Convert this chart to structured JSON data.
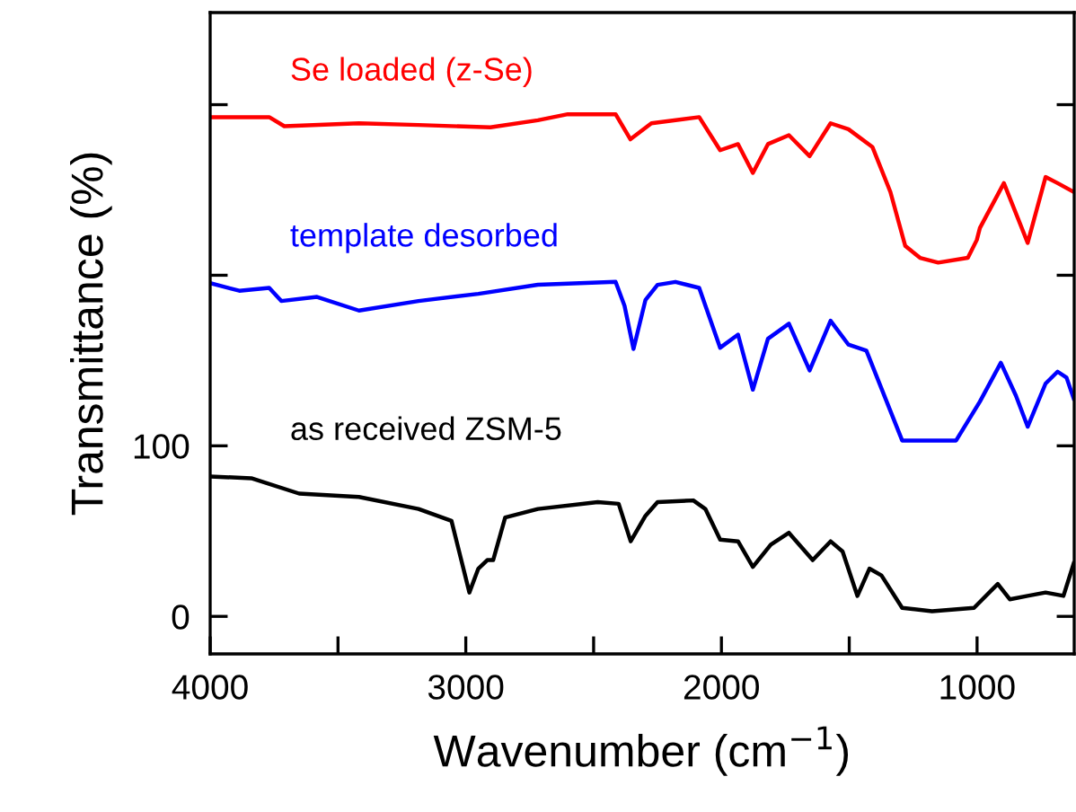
{
  "chart_data": {
    "type": "line",
    "xlabel": "Wavenumber (cm$^{−1}$)",
    "ylabel": "Transmittance (%)",
    "xlim": [
      4000,
      620
    ],
    "ylim": [
      -22,
      354
    ],
    "xticks": [
      4000,
      {
        "value": 3500,
        "label": null
      },
      3000,
      {
        "value": 2500,
        "label": null
      },
      2000,
      {
        "value": 1500,
        "label": null
      },
      1000
    ],
    "yticks": [
      0,
      100,
      {
        "value": 200,
        "label": null
      },
      {
        "value": 300,
        "label": null
      }
    ],
    "grid": false,
    "legend": false,
    "marker": "none",
    "line_style": "solid",
    "series": [
      {
        "name": "Se loaded (z-Se)",
        "color": "#ff0000",
        "x": [
          4000,
          3769,
          3710,
          3418,
          3185,
          2904,
          2718,
          2601,
          2414,
          2356,
          2274,
          2087,
          2005,
          1935,
          1877,
          1818,
          1736,
          1655,
          1573,
          1503,
          1409,
          1339,
          1281,
          1223,
          1152,
          1036,
          1001,
          989,
          895,
          802,
          732,
          685,
          622
        ],
        "values": [
          292.7,
          292.7,
          287.4,
          289.1,
          288.1,
          286.7,
          290.9,
          294.4,
          294.4,
          279.7,
          289.1,
          292.7,
          273.3,
          276.9,
          260.0,
          276.9,
          282.1,
          269.8,
          289.1,
          285.6,
          275.1,
          248.8,
          217.2,
          210.2,
          207.4,
          210.2,
          220.7,
          227.7,
          254.0,
          219.0,
          257.6,
          254.0,
          248.8
        ]
      },
      {
        "name": "template desorbed",
        "color": "#0000ff",
        "x": [
          4000,
          3886,
          3769,
          3722,
          3582,
          3418,
          3185,
          2951,
          2718,
          2414,
          2379,
          2344,
          2297,
          2250,
          2180,
          2087,
          2005,
          1935,
          1877,
          1818,
          1736,
          1655,
          1573,
          1503,
          1433,
          1293,
          1082,
          989,
          907,
          848,
          802,
          732,
          685,
          650,
          622
        ],
        "values": [
          195.4,
          190.9,
          192.6,
          184.9,
          187.3,
          179.3,
          184.9,
          189.1,
          194.4,
          196.1,
          182.1,
          156.8,
          185.6,
          194.4,
          196.1,
          192.6,
          157.5,
          165.2,
          132.9,
          162.8,
          171.6,
          144.2,
          173.3,
          159.3,
          155.8,
          103.1,
          103.1,
          125.9,
          148.7,
          129.4,
          111.2,
          136.5,
          143.5,
          140.0,
          127.7
        ]
      },
      {
        "name": "as received ZSM-5",
        "color": "#000000",
        "x": [
          4000,
          3839,
          3652,
          3418,
          3185,
          3056,
          3021,
          2986,
          2951,
          2916,
          2893,
          2846,
          2718,
          2484,
          2402,
          2355,
          2297,
          2250,
          2110,
          2063,
          2005,
          1935,
          1877,
          1807,
          1736,
          1643,
          1573,
          1526,
          1468,
          1421,
          1374,
          1293,
          1176,
          1012,
          919,
          872,
          802,
          732,
          662,
          622
        ],
        "values": [
          82,
          81,
          72,
          70,
          63,
          56,
          35,
          14,
          28,
          33,
          33,
          58,
          63,
          67,
          66,
          44,
          59,
          67,
          68,
          63,
          45,
          44,
          29,
          42,
          49,
          33,
          44,
          38,
          12,
          28,
          24,
          5,
          3,
          5,
          19,
          10,
          12,
          14,
          12,
          31
        ]
      }
    ]
  }
}
